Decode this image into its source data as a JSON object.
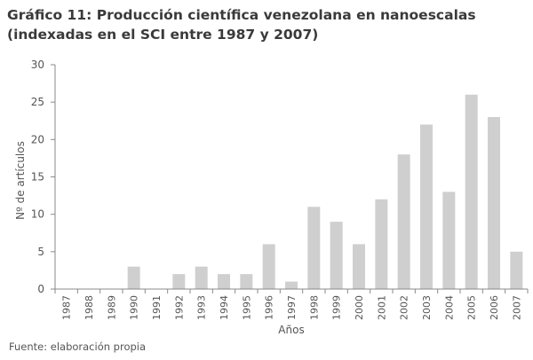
{
  "title_line1": "Gráfico 11: Producción científica venezolana en nanoescalas",
  "title_line2": "(indexadas en el SCI entre 1987 y 2007)",
  "source": "Fuente: elaboración propia",
  "colors": {
    "bar": "#cfcfcf",
    "axis": "#8a8a8a",
    "text": "#555555"
  },
  "chart_data": {
    "type": "bar",
    "categories": [
      "1987",
      "1988",
      "1989",
      "1990",
      "1991",
      "1992",
      "1993",
      "1994",
      "1995",
      "1996",
      "1997",
      "1998",
      "1999",
      "2000",
      "2001",
      "2002",
      "2003",
      "2004",
      "2005",
      "2006",
      "2007"
    ],
    "values": [
      0,
      0,
      0,
      3,
      0,
      2,
      3,
      2,
      2,
      6,
      1,
      11,
      9,
      6,
      12,
      18,
      22,
      13,
      26,
      23,
      5
    ],
    "xlabel": "Años",
    "ylabel": "Nº de artículos",
    "ylim": [
      0,
      30
    ],
    "yticks": [
      0,
      5,
      10,
      15,
      20,
      25,
      30
    ],
    "grid": false,
    "legend": "none"
  }
}
